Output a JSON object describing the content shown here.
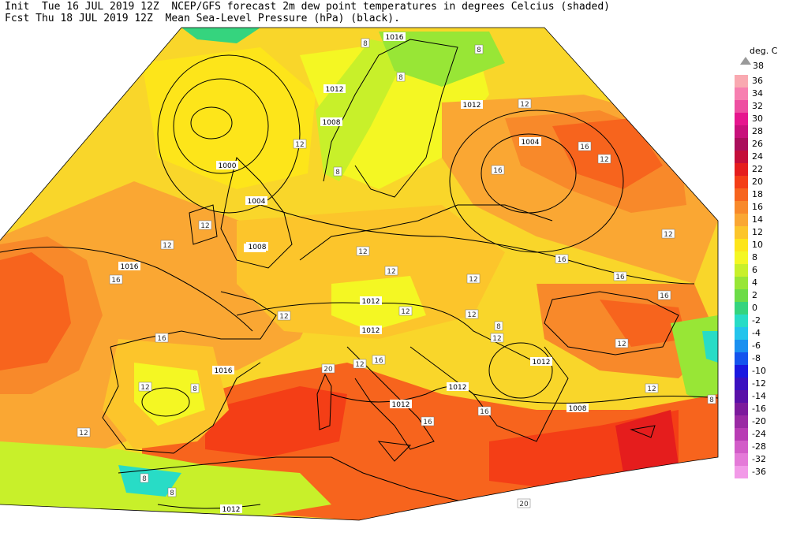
{
  "header": {
    "line1": "Init  Tue 16 JUL 2019 12Z  NCEP/GFS forecast 2m dew point temperatures in degrees Celcius (shaded)",
    "line2": "Fcst Thu 18 JUL 2019 12Z  Mean Sea-Level Pressure (hPa) (black)."
  },
  "legend": {
    "unit": "deg. C",
    "top_value": "38",
    "steps": [
      {
        "label": "36",
        "color": "#f9a9b1"
      },
      {
        "label": "34",
        "color": "#f77fb0"
      },
      {
        "label": "32",
        "color": "#ee4fa1"
      },
      {
        "label": "30",
        "color": "#e6168e"
      },
      {
        "label": "28",
        "color": "#c8117b"
      },
      {
        "label": "26",
        "color": "#aa0f5c"
      },
      {
        "label": "24",
        "color": "#c40e3a"
      },
      {
        "label": "22",
        "color": "#e51d1d"
      },
      {
        "label": "20",
        "color": "#f43e16"
      },
      {
        "label": "18",
        "color": "#f7641d"
      },
      {
        "label": "16",
        "color": "#f8892a"
      },
      {
        "label": "14",
        "color": "#faa733"
      },
      {
        "label": "12",
        "color": "#fcc52b"
      },
      {
        "label": "10",
        "color": "#fde51a"
      },
      {
        "label": "8",
        "color": "#f4f723"
      },
      {
        "label": "6",
        "color": "#c8f02a"
      },
      {
        "label": "4",
        "color": "#98e636"
      },
      {
        "label": "2",
        "color": "#6cdc48"
      },
      {
        "label": "0",
        "color": "#35d47e"
      },
      {
        "label": "-2",
        "color": "#28dcc6"
      },
      {
        "label": "-4",
        "color": "#24c4ec"
      },
      {
        "label": "-6",
        "color": "#1a90f0"
      },
      {
        "label": "-8",
        "color": "#1454ee"
      },
      {
        "label": "-10",
        "color": "#1a18e0"
      },
      {
        "label": "-12",
        "color": "#3a10c0"
      },
      {
        "label": "-14",
        "color": "#5a10a8"
      },
      {
        "label": "-16",
        "color": "#7c1a9c"
      },
      {
        "label": "-20",
        "color": "#9a2aa4"
      },
      {
        "label": "-24",
        "color": "#b83cb4"
      },
      {
        "label": "-28",
        "color": "#d25cc8"
      },
      {
        "label": "-32",
        "color": "#e47ad8"
      },
      {
        "label": "-36",
        "color": "#f29ae8"
      }
    ]
  },
  "map": {
    "isobar_labels": [
      "1016",
      "1012",
      "1008",
      "1004",
      "1000",
      "1004",
      "1008",
      "1016",
      "1012",
      "1012",
      "1008",
      "1012",
      "1012",
      "1012",
      "1016",
      "1012",
      "1008",
      "1012"
    ],
    "dewpoint_labels": [
      "8",
      "8",
      "8",
      "12",
      "8",
      "16",
      "16",
      "12",
      "12",
      "12",
      "12",
      "12",
      "16",
      "12",
      "12",
      "16",
      "12",
      "12",
      "12",
      "8",
      "12",
      "12",
      "16",
      "20",
      "16",
      "12",
      "16",
      "20",
      "8",
      "8",
      "12",
      "8",
      "12",
      "16",
      "12",
      "16",
      "12",
      "16",
      "8"
    ]
  }
}
